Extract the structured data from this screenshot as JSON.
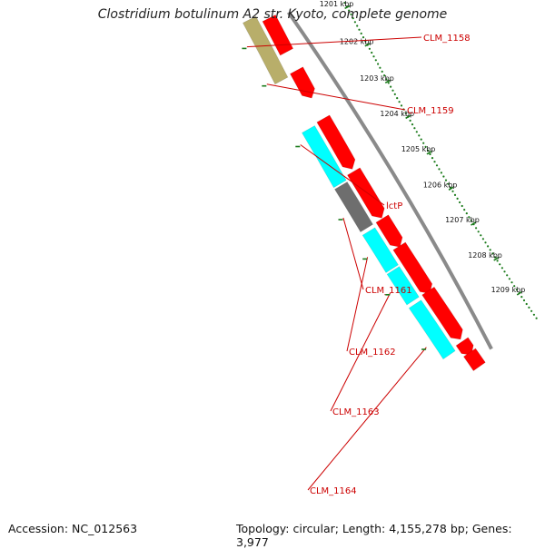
{
  "title": "Clostridium botulinum A2 str. Kyoto, complete genome",
  "footer": {
    "accession": "Accession: NC_012563",
    "topology": "Topology: circular; Length: 4,155,278 bp; Genes: 3,977"
  },
  "colors": {
    "backbone": "#8a8a8a",
    "forward_cds": "#ff0000",
    "reverse_cds_cyan": "#00ffff",
    "reverse_cds_olive": "#b8ae6a",
    "reverse_cds_gray": "#6e6e6e",
    "tick": "#1a7a1a",
    "label": "#cc0000"
  },
  "ruler": {
    "kbp_labels": [
      "1201 kbp",
      "1202 kbp",
      "1203 kbp",
      "1204 kbp",
      "1205 kbp",
      "1206 kbp",
      "1207 kbp",
      "1208 kbp",
      "1209 kbp"
    ]
  },
  "gene_labels": [
    "CLM_1158",
    "CLM_1159",
    "lctP",
    "CLM_1161",
    "CLM_1162",
    "CLM_1163",
    "CLM_1164"
  ],
  "features": {
    "forward_strand": [
      "forward-cds",
      "forward-cds",
      "forward-cds",
      "forward-cds",
      "forward-cds",
      "forward-cds",
      "forward-cds",
      "forward-cds",
      "forward-cds"
    ],
    "reverse_strand": [
      "reverse-cds-olive",
      "reverse-cds-cyan",
      "reverse-cds-gray",
      "reverse-cds-cyan",
      "reverse-cds-cyan",
      "reverse-cds-cyan"
    ]
  }
}
